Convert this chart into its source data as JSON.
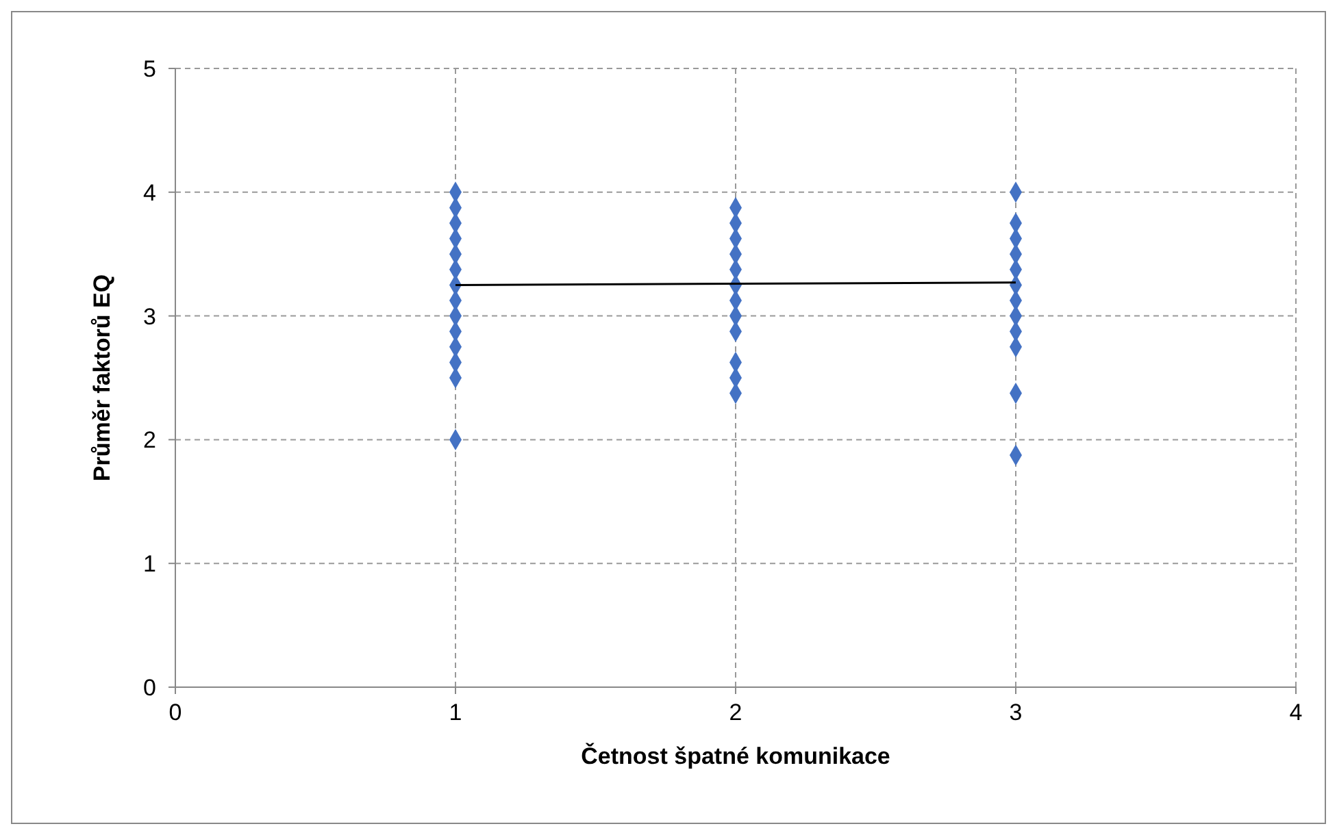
{
  "chart_data": {
    "type": "scatter",
    "xlabel": "Četnost špatné komunikace",
    "ylabel": "Průměr faktorů EQ",
    "xlim": [
      0,
      4
    ],
    "xticks": [
      0,
      1,
      2,
      3,
      4
    ],
    "ylim": [
      0,
      5
    ],
    "yticks": [
      0,
      1,
      2,
      3,
      4,
      5
    ],
    "grid": true,
    "marker": "diamond",
    "series": [
      {
        "color": "#4472c4",
        "x": [
          1,
          1,
          1,
          1,
          1,
          1,
          1,
          1,
          1,
          1,
          1,
          1,
          1,
          1,
          2,
          2,
          2,
          2,
          2,
          2,
          2,
          2,
          2,
          2,
          2,
          2,
          3,
          3,
          3,
          3,
          3,
          3,
          3,
          3,
          3,
          3,
          3,
          3
        ],
        "values": [
          4,
          3.875,
          3.75,
          3.625,
          3.5,
          3.375,
          3.25,
          3.125,
          3,
          2.875,
          2.75,
          2.625,
          2.5,
          2,
          3.875,
          3.75,
          3.625,
          3.5,
          3.375,
          3.25,
          3.125,
          3,
          2.875,
          2.625,
          2.5,
          2.375,
          4,
          3.75,
          3.625,
          3.5,
          3.375,
          3.25,
          3.125,
          3,
          2.875,
          2.75,
          2.375,
          1.875
        ]
      },
      {
        "type": "line",
        "color": "#000000",
        "marker": "none",
        "x": [
          1,
          3
        ],
        "values": [
          3.25,
          3.27
        ]
      }
    ]
  }
}
